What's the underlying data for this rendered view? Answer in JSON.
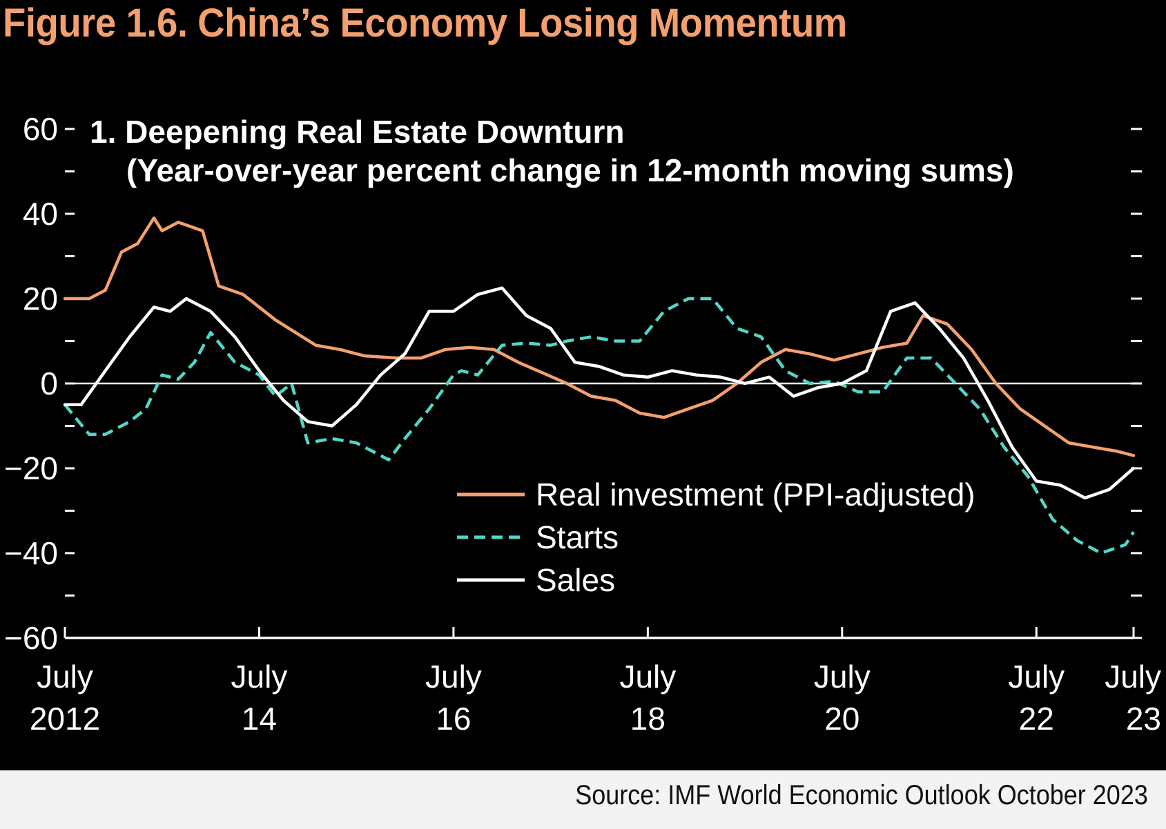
{
  "figure": {
    "title": "Figure 1.6.  China’s Economy Losing Momentum"
  },
  "source": {
    "text": "Source: IMF World Economic Outlook October 2023"
  },
  "colors": {
    "background": "#000000",
    "title": "#F4A06E",
    "real_investment": "#F4A06E",
    "starts": "#52D6C8",
    "sales": "#FFFFFF",
    "axis": "#FFFFFF",
    "source_band": "#F3F3F3"
  },
  "chart_data": {
    "type": "line",
    "title": "1. Deepening Real Estate Downturn",
    "subtitle": "(Year-over-year percent change in 12-month moving sums)",
    "xlabel": "",
    "ylabel": "",
    "ylim": [
      -60,
      60
    ],
    "y_ticks_labeled": [
      60,
      40,
      20,
      0,
      -20,
      -40,
      -60
    ],
    "y_tick_labels": [
      "60",
      "40",
      "20",
      "0",
      "−20",
      "−40",
      "−60"
    ],
    "y_minor_ticks": [
      50,
      30,
      10,
      -10,
      -30,
      -50
    ],
    "x_range": [
      "2012-07",
      "2023-07"
    ],
    "x_ticks": [
      {
        "date": "2012-07",
        "line1": "July",
        "line2": "2012"
      },
      {
        "date": "2014-07",
        "line1": "July",
        "line2": "14"
      },
      {
        "date": "2016-07",
        "line1": "July",
        "line2": "16"
      },
      {
        "date": "2018-07",
        "line1": "July",
        "line2": "18"
      },
      {
        "date": "2020-07",
        "line1": "July",
        "line2": "20"
      },
      {
        "date": "2022-07",
        "line1": "July",
        "line2": "22"
      },
      {
        "date": "2023-07",
        "line1": "July",
        "line2": "23"
      }
    ],
    "zero_line": true,
    "grid": false,
    "legend_position": "lower-middle",
    "series": [
      {
        "name": "Real investment (PPI-adjusted)",
        "style": "solid",
        "color": "#F4A06E",
        "points": [
          [
            "2012-07",
            20
          ],
          [
            "2012-10",
            20
          ],
          [
            "2012-12",
            22
          ],
          [
            "2013-02",
            31
          ],
          [
            "2013-04",
            33
          ],
          [
            "2013-06",
            39
          ],
          [
            "2013-07",
            36
          ],
          [
            "2013-09",
            38
          ],
          [
            "2013-12",
            36
          ],
          [
            "2014-02",
            23
          ],
          [
            "2014-05",
            21
          ],
          [
            "2014-09",
            15
          ],
          [
            "2015-02",
            9
          ],
          [
            "2015-05",
            8
          ],
          [
            "2015-08",
            6.5
          ],
          [
            "2015-12",
            6
          ],
          [
            "2016-03",
            6
          ],
          [
            "2016-06",
            8
          ],
          [
            "2016-09",
            8.5
          ],
          [
            "2016-12",
            8
          ],
          [
            "2017-03",
            5
          ],
          [
            "2017-06",
            2.5
          ],
          [
            "2017-09",
            0
          ],
          [
            "2017-12",
            -3
          ],
          [
            "2018-03",
            -4
          ],
          [
            "2018-06",
            -7
          ],
          [
            "2018-09",
            -8
          ],
          [
            "2018-12",
            -6
          ],
          [
            "2019-03",
            -4
          ],
          [
            "2019-06",
            0
          ],
          [
            "2019-09",
            5
          ],
          [
            "2019-12",
            8
          ],
          [
            "2020-03",
            7
          ],
          [
            "2020-06",
            5.5
          ],
          [
            "2020-09",
            7
          ],
          [
            "2020-12",
            8.5
          ],
          [
            "2021-03",
            9.5
          ],
          [
            "2021-05",
            16
          ],
          [
            "2021-08",
            14
          ],
          [
            "2021-11",
            8
          ],
          [
            "2022-02",
            0
          ],
          [
            "2022-05",
            -6
          ],
          [
            "2022-08",
            -10
          ],
          [
            "2022-11",
            -14
          ],
          [
            "2023-02",
            -15
          ],
          [
            "2023-05",
            -16
          ],
          [
            "2023-07",
            -17
          ]
        ]
      },
      {
        "name": "Starts",
        "style": "dashed",
        "color": "#52D6C8",
        "points": [
          [
            "2012-07",
            -5
          ],
          [
            "2012-10",
            -12
          ],
          [
            "2012-12",
            -12
          ],
          [
            "2013-03",
            -9
          ],
          [
            "2013-05",
            -6
          ],
          [
            "2013-07",
            2
          ],
          [
            "2013-09",
            1
          ],
          [
            "2013-11",
            5
          ],
          [
            "2014-01",
            12
          ],
          [
            "2014-04",
            5
          ],
          [
            "2014-07",
            2
          ],
          [
            "2014-09",
            -3
          ],
          [
            "2014-11",
            0
          ],
          [
            "2015-01",
            -14
          ],
          [
            "2015-04",
            -13
          ],
          [
            "2015-07",
            -14
          ],
          [
            "2015-09",
            -16
          ],
          [
            "2015-11",
            -18
          ],
          [
            "2016-01",
            -13
          ],
          [
            "2016-04",
            -6
          ],
          [
            "2016-07",
            2
          ],
          [
            "2016-08",
            3
          ],
          [
            "2016-10",
            2
          ],
          [
            "2017-01",
            9
          ],
          [
            "2017-04",
            9.5
          ],
          [
            "2017-07",
            9
          ],
          [
            "2017-09",
            10
          ],
          [
            "2017-12",
            11
          ],
          [
            "2018-03",
            10
          ],
          [
            "2018-06",
            10
          ],
          [
            "2018-09",
            17
          ],
          [
            "2018-12",
            20
          ],
          [
            "2019-03",
            20
          ],
          [
            "2019-06",
            13
          ],
          [
            "2019-09",
            11
          ],
          [
            "2019-12",
            3
          ],
          [
            "2020-03",
            0
          ],
          [
            "2020-06",
            0.5
          ],
          [
            "2020-09",
            -2
          ],
          [
            "2020-12",
            -2
          ],
          [
            "2021-03",
            6
          ],
          [
            "2021-06",
            6
          ],
          [
            "2021-09",
            0
          ],
          [
            "2021-12",
            -6
          ],
          [
            "2022-03",
            -15
          ],
          [
            "2022-06",
            -22
          ],
          [
            "2022-09",
            -32
          ],
          [
            "2022-12",
            -37
          ],
          [
            "2023-03",
            -40
          ],
          [
            "2023-06",
            -38
          ],
          [
            "2023-07",
            -35
          ]
        ]
      },
      {
        "name": "Sales",
        "style": "solid",
        "color": "#FFFFFF",
        "points": [
          [
            "2012-07",
            -5
          ],
          [
            "2012-09",
            -5
          ],
          [
            "2012-12",
            3
          ],
          [
            "2013-03",
            11
          ],
          [
            "2013-06",
            18
          ],
          [
            "2013-08",
            17
          ],
          [
            "2013-10",
            20
          ],
          [
            "2014-01",
            17
          ],
          [
            "2014-04",
            11
          ],
          [
            "2014-07",
            3
          ],
          [
            "2014-10",
            -4
          ],
          [
            "2015-01",
            -9
          ],
          [
            "2015-04",
            -10
          ],
          [
            "2015-07",
            -5
          ],
          [
            "2015-10",
            2
          ],
          [
            "2016-01",
            7
          ],
          [
            "2016-04",
            17
          ],
          [
            "2016-07",
            17
          ],
          [
            "2016-10",
            21
          ],
          [
            "2017-01",
            22.5
          ],
          [
            "2017-04",
            16
          ],
          [
            "2017-07",
            13
          ],
          [
            "2017-10",
            5
          ],
          [
            "2018-01",
            4
          ],
          [
            "2018-04",
            2
          ],
          [
            "2018-07",
            1.5
          ],
          [
            "2018-10",
            3
          ],
          [
            "2019-01",
            2
          ],
          [
            "2019-04",
            1.5
          ],
          [
            "2019-07",
            0
          ],
          [
            "2019-10",
            1.5
          ],
          [
            "2020-01",
            -3
          ],
          [
            "2020-04",
            -1
          ],
          [
            "2020-07",
            0
          ],
          [
            "2020-10",
            3
          ],
          [
            "2021-01",
            17
          ],
          [
            "2021-04",
            19
          ],
          [
            "2021-07",
            13
          ],
          [
            "2021-10",
            6
          ],
          [
            "2022-01",
            -4
          ],
          [
            "2022-04",
            -15
          ],
          [
            "2022-07",
            -23
          ],
          [
            "2022-10",
            -24
          ],
          [
            "2023-01",
            -27
          ],
          [
            "2023-04",
            -25
          ],
          [
            "2023-07",
            -20
          ]
        ]
      }
    ]
  }
}
